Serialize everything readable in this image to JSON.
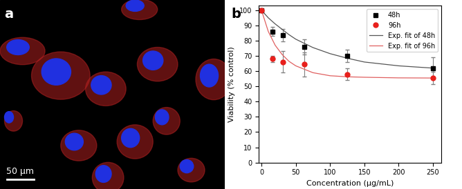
{
  "chart_data": [
    {
      "type": "image",
      "title": "a",
      "annotations": [
        "50 µm"
      ]
    },
    {
      "type": "scatter",
      "title": "b",
      "x_label": "Concentration (µg/mL)",
      "y_label": "Viability (% control)",
      "xlim": [
        -4,
        262
      ],
      "xticks": [
        0,
        50,
        100,
        150,
        200,
        250
      ],
      "ylim": [
        0,
        103
      ],
      "yticks": [
        0,
        10,
        20,
        30,
        40,
        50,
        60,
        70,
        80,
        90,
        100
      ],
      "legend": "upper right",
      "series": [
        {
          "name": "48h",
          "color": "#000000",
          "marker": "square",
          "x": [
            0,
            15.6,
            31.25,
            62.5,
            125,
            250
          ],
          "values": [
            100,
            86,
            83.5,
            76,
            70,
            62
          ],
          "errors": [
            0,
            3,
            4,
            5,
            4,
            7
          ]
        },
        {
          "name": "96h",
          "color": "#e8201c",
          "marker": "circle",
          "x": [
            0,
            15.6,
            31.25,
            62.5,
            125,
            250
          ],
          "values": [
            100,
            68,
            66,
            64.5,
            58,
            55.5
          ],
          "errors": [
            0,
            2,
            7,
            8,
            4,
            4
          ]
        },
        {
          "name": "Exp. fit of 48h",
          "type": "line",
          "color": "#555555",
          "x": [
            0,
            10,
            20,
            30,
            40,
            50,
            75,
            100,
            125,
            150,
            200,
            250
          ],
          "values": [
            100,
            95,
            91,
            87.5,
            84,
            81,
            75.5,
            71.5,
            68.5,
            66,
            63.5,
            62
          ]
        },
        {
          "name": "Exp. fit of 96h",
          "type": "line",
          "color": "#e06060",
          "x": [
            0,
            10,
            20,
            30,
            40,
            50,
            75,
            100,
            125,
            150,
            200,
            250
          ],
          "values": [
            100,
            86,
            77,
            71,
            66.5,
            63.5,
            59,
            57,
            56.3,
            56,
            55.6,
            55.5
          ]
        }
      ]
    }
  ]
}
